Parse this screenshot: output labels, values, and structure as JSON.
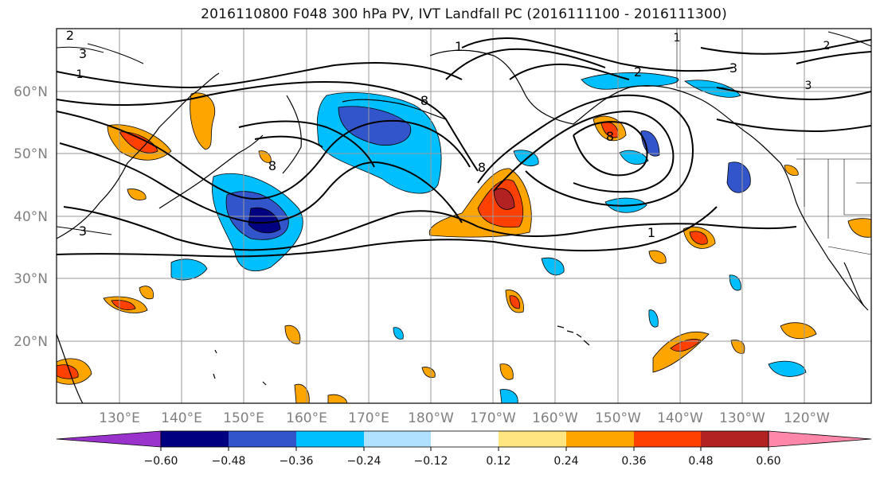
{
  "title": "2016110800 F048 300 hPa PV, IVT Landfall PC (2016111100 - 2016111300)",
  "map": {
    "lat_labels": [
      "60°N",
      "50°N",
      "40°N",
      "30°N",
      "20°N"
    ],
    "lon_labels": [
      "130°E",
      "140°E",
      "150°E",
      "160°E",
      "170°E",
      "180°W",
      "170°W",
      "160°W",
      "150°W",
      "140°W",
      "130°W",
      "120°W"
    ],
    "contour_labels": [
      "3",
      "2",
      "1",
      "3",
      "8",
      "8",
      "1",
      "8",
      "2",
      "8",
      "1",
      "3",
      "1",
      "3",
      "2"
    ]
  },
  "colorbar": {
    "colors": [
      "#9933cc",
      "#000080",
      "#3355cc",
      "#00bfff",
      "#b0e2ff",
      "#ffffff",
      "#ffe680",
      "#ffa500",
      "#ff4000",
      "#b22222",
      "#ff88aa"
    ],
    "tick_labels": [
      "−0.60",
      "−0.48",
      "−0.36",
      "−0.24",
      "−0.12",
      "0.12",
      "0.24",
      "0.36",
      "0.48",
      "0.60"
    ]
  }
}
